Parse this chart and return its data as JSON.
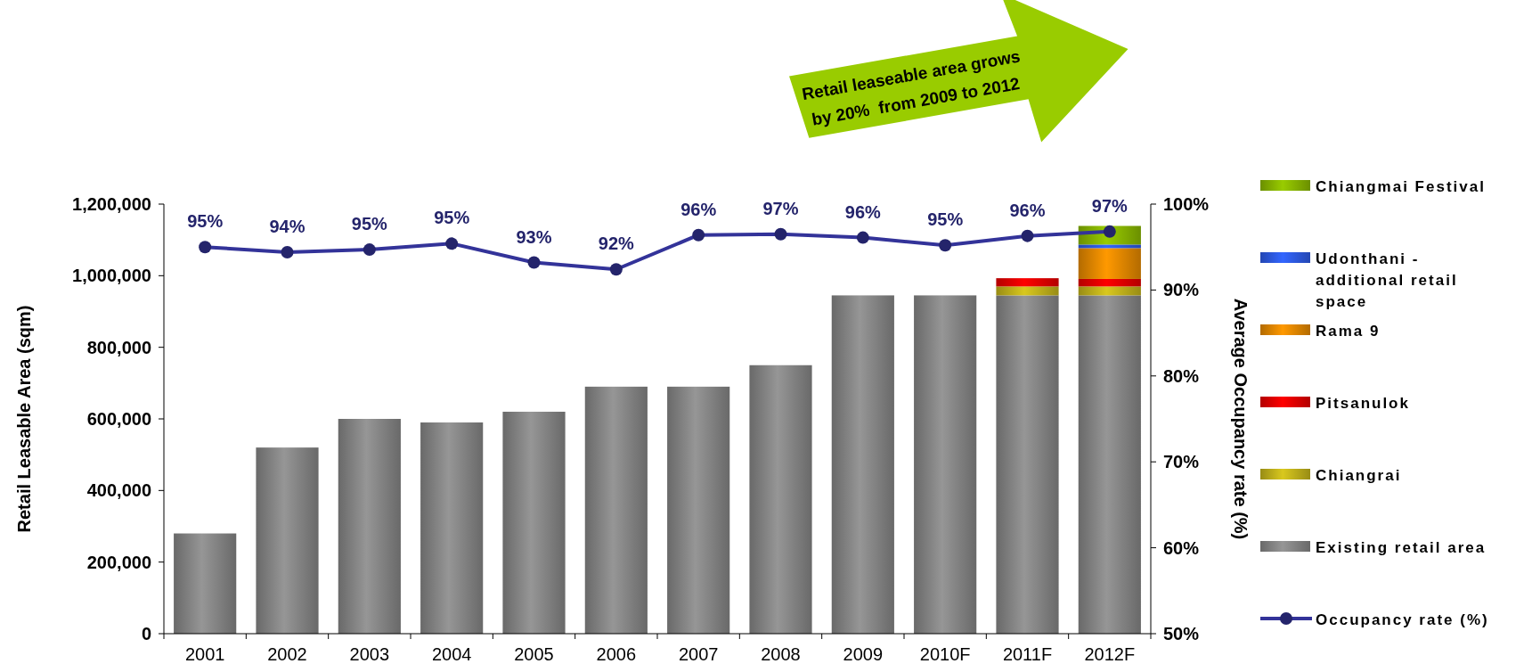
{
  "chart_data": {
    "type": "bar",
    "stacked": true,
    "categories": [
      "2001",
      "2002",
      "2003",
      "2004",
      "2005",
      "2006",
      "2007",
      "2008",
      "2009",
      "2010F",
      "2011F",
      "2012F"
    ],
    "series": [
      {
        "name": "Existing retail area",
        "color": "#969696",
        "values": [
          280000,
          520000,
          600000,
          590000,
          620000,
          690000,
          690000,
          750000,
          945000,
          945000,
          945000,
          945000
        ]
      },
      {
        "name": "Chiangrai",
        "color": "#d9c81e",
        "values": [
          null,
          null,
          null,
          null,
          null,
          null,
          null,
          null,
          null,
          null,
          25000,
          25000
        ]
      },
      {
        "name": "Pitsanulok",
        "color": "#ff0000",
        "values": [
          null,
          null,
          null,
          null,
          null,
          null,
          null,
          null,
          null,
          null,
          23000,
          21000
        ]
      },
      {
        "name": "Rama 9",
        "color": "#ff9900",
        "values": [
          null,
          null,
          null,
          null,
          null,
          null,
          null,
          null,
          null,
          null,
          null,
          86000
        ]
      },
      {
        "name": "Udonthani - additional retail space",
        "color": "#3366ff",
        "values": [
          null,
          null,
          null,
          null,
          null,
          null,
          null,
          null,
          null,
          null,
          null,
          10000
        ]
      },
      {
        "name": "Chiangmai Festival",
        "color": "#99cc00",
        "values": [
          null,
          null,
          null,
          null,
          null,
          null,
          null,
          null,
          null,
          null,
          null,
          52000
        ]
      },
      {
        "name": "Occupancy rate (%)",
        "type": "line",
        "axis": "y2",
        "color": "#333399",
        "marker": "circle",
        "values": [
          95.0,
          94.4,
          94.7,
          95.4,
          93.2,
          92.4,
          96.4,
          96.5,
          96.1,
          95.2,
          96.3,
          96.8
        ],
        "value_labels": [
          "95%",
          "94%",
          "95%",
          "95%",
          "93%",
          "92%",
          "96%",
          "97%",
          "96%",
          "95%",
          "96%",
          "97%"
        ]
      }
    ],
    "ylabel": "Retail Leasable Area (sqm)",
    "y2label": "Average Occupancy rate (%)",
    "ylim": [
      0,
      1200000
    ],
    "yticks": [
      {
        "value": 0,
        "label": "0"
      },
      {
        "value": 200000,
        "label": "200,000"
      },
      {
        "value": 400000,
        "label": "400,000"
      },
      {
        "value": 600000,
        "label": "600,000"
      },
      {
        "value": 800000,
        "label": "800,000"
      },
      {
        "value": 1000000,
        "label": "1,000,000"
      },
      {
        "value": 1200000,
        "label": "1,200,000"
      }
    ],
    "y2lim": [
      50,
      100
    ],
    "y2ticks": [
      {
        "value": 50,
        "label": "50%"
      },
      {
        "value": 60,
        "label": "60%"
      },
      {
        "value": 70,
        "label": "70%"
      },
      {
        "value": 80,
        "label": "80%"
      },
      {
        "value": 90,
        "label": "90%"
      },
      {
        "value": 100,
        "label": "100%"
      }
    ],
    "annotations": [
      "Retail leaseable area grows by 20%  from 2009 to 2012"
    ],
    "legend": "right",
    "grid": false
  }
}
